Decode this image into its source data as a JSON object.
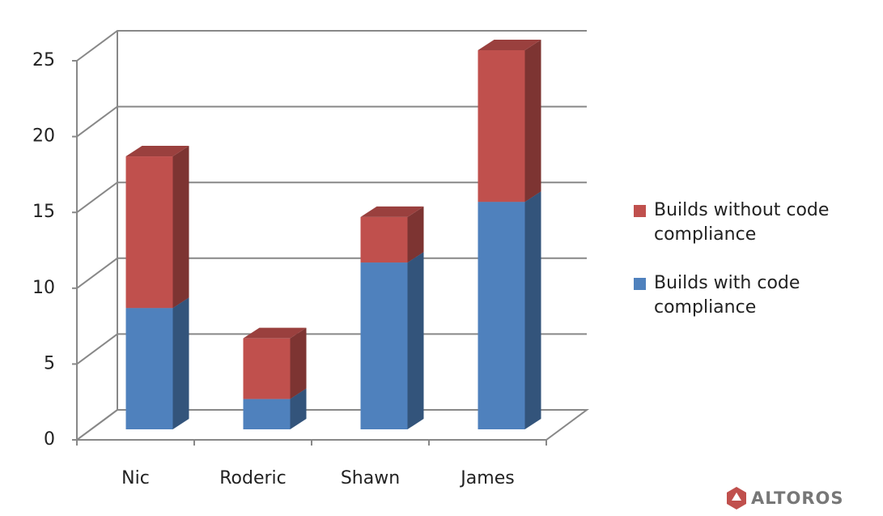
{
  "chart_data": {
    "type": "bar3d_stacked",
    "categories": [
      "Nic",
      "Roderic",
      "Shawn",
      "James"
    ],
    "series": [
      {
        "name": "Builds with code compliance",
        "color": "#4f81bd",
        "values": [
          8,
          2,
          11,
          15
        ]
      },
      {
        "name": "Builds without code compliance",
        "color": "#c0504d",
        "values": [
          10,
          4,
          3,
          10
        ]
      }
    ],
    "ylim": [
      0,
      25
    ],
    "yticks": [
      0,
      5,
      10,
      15,
      20,
      25
    ],
    "grid": true,
    "legend": "right"
  },
  "logo": "ALTOROS"
}
